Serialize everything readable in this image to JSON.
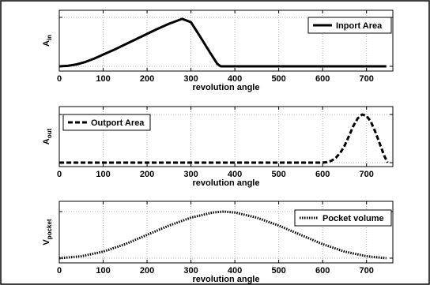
{
  "chart_data": [
    {
      "type": "line",
      "xlabel": "revolution angle",
      "ylabel_main": "A",
      "ylabel_sub": "in",
      "xlim": [
        0,
        760
      ],
      "ylim": [
        0,
        1
      ],
      "xticks": [
        0,
        100,
        200,
        300,
        400,
        500,
        600,
        700
      ],
      "grid": "dotted",
      "legend_position": "top-right",
      "series": [
        {
          "name": "Inport Area",
          "style": "solid",
          "color": "#000000",
          "x": [
            0,
            20,
            40,
            60,
            80,
            100,
            130,
            160,
            190,
            220,
            250,
            280,
            300,
            320,
            340,
            360,
            368,
            400,
            500,
            600,
            700,
            745
          ],
          "y": [
            0,
            0.01,
            0.04,
            0.09,
            0.16,
            0.24,
            0.36,
            0.49,
            0.62,
            0.75,
            0.87,
            0.97,
            0.9,
            0.62,
            0.33,
            0.05,
            0,
            0,
            0,
            0,
            0,
            0
          ]
        }
      ]
    },
    {
      "type": "line",
      "xlabel": "revolution angle",
      "ylabel_main": "A",
      "ylabel_sub": "out",
      "xlim": [
        0,
        760
      ],
      "ylim": [
        0,
        1
      ],
      "xticks": [
        0,
        100,
        200,
        300,
        400,
        500,
        600,
        700
      ],
      "grid": "dotted",
      "legend_position": "top-left",
      "series": [
        {
          "name": "Outport Area",
          "style": "dashed",
          "color": "#000000",
          "x": [
            0,
            100,
            200,
            300,
            400,
            500,
            600,
            610,
            620,
            630,
            640,
            650,
            660,
            670,
            680,
            690,
            700,
            710,
            720,
            730,
            740,
            748
          ],
          "y": [
            0,
            0,
            0,
            0,
            0,
            0,
            0,
            0.01,
            0.04,
            0.1,
            0.2,
            0.35,
            0.55,
            0.76,
            0.92,
            1.0,
            0.97,
            0.85,
            0.64,
            0.4,
            0.15,
            0
          ]
        }
      ]
    },
    {
      "type": "line",
      "xlabel": "revolution angle",
      "ylabel_main": "V",
      "ylabel_sub": "pocket",
      "xlim": [
        0,
        760
      ],
      "ylim": [
        0,
        1
      ],
      "xticks": [
        0,
        100,
        200,
        300,
        400,
        500,
        600,
        700
      ],
      "grid": "dotted",
      "legend_position": "top-right",
      "series": [
        {
          "name": "Pocket volume",
          "style": "dotted",
          "color": "#000000",
          "x": [
            0,
            50,
            100,
            150,
            200,
            250,
            300,
            350,
            375,
            400,
            450,
            500,
            550,
            600,
            650,
            700,
            745
          ],
          "y": [
            0,
            0.04,
            0.14,
            0.3,
            0.5,
            0.7,
            0.87,
            0.98,
            1.0,
            0.98,
            0.87,
            0.7,
            0.5,
            0.3,
            0.14,
            0.04,
            0
          ]
        }
      ]
    }
  ]
}
